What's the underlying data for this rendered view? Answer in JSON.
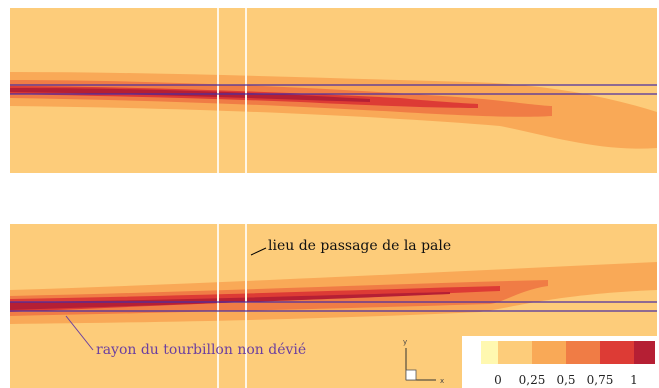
{
  "annotations": {
    "blade_passage": "lieu de passage de la pale",
    "vortex_radius": "rayon du tourbillon non dévié"
  },
  "axes": {
    "y": "y",
    "x": "x"
  },
  "legend": {
    "ticks": [
      "0",
      "0,25",
      "0,5",
      "0,75",
      "1"
    ],
    "colors": [
      "#fff8b0",
      "#fdcc7a",
      "#f9a957",
      "#f07c45",
      "#dd3b35",
      "#b51f34"
    ]
  },
  "colors": {
    "background": "#fdcc7a",
    "contour_light": "#f9a957",
    "contour_mid": "#f07c45",
    "contour_dark": "#dd3b35",
    "contour_darkest": "#b51f34",
    "vortex_line": "#4b2fa0",
    "blade_line": "#fff6e6"
  }
}
